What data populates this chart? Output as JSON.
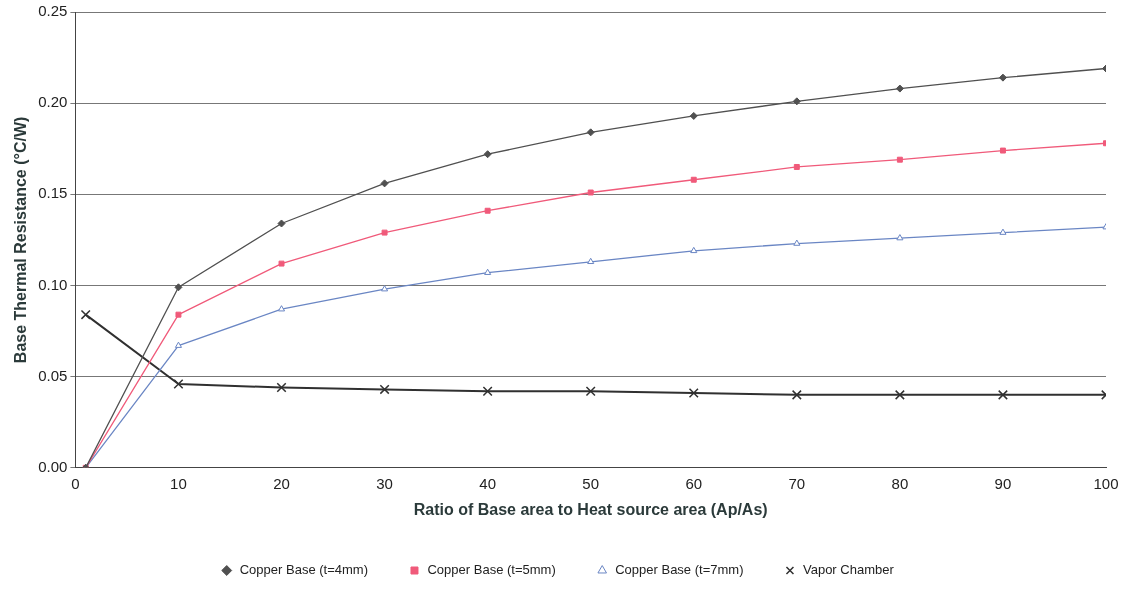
{
  "chart_data": {
    "type": "line",
    "xlabel": "Ratio of Base area to Heat source area (Ap/As)",
    "ylabel": "Base Thermal Resistance (°C/W)",
    "x": [
      1,
      10,
      20,
      30,
      40,
      50,
      60,
      70,
      80,
      90,
      100
    ],
    "series": [
      {
        "name": "Copper Base (t=4mm)",
        "color": "#505050",
        "marker": "diamond",
        "values": [
          0,
          0.099,
          0.134,
          0.156,
          0.172,
          0.184,
          0.193,
          0.201,
          0.208,
          0.214,
          0.219
        ]
      },
      {
        "name": "Copper Base (t=5mm)",
        "color": "#f05a7a",
        "marker": "square",
        "values": [
          0,
          0.084,
          0.112,
          0.129,
          0.141,
          0.151,
          0.158,
          0.165,
          0.169,
          0.174,
          0.178
        ]
      },
      {
        "name": "Copper Base (t=7mm)",
        "color": "#6a86c4",
        "marker": "triangle",
        "values": [
          0,
          0.067,
          0.087,
          0.098,
          0.107,
          0.113,
          0.119,
          0.123,
          0.126,
          0.129,
          0.132
        ]
      },
      {
        "name": "Vapor Chamber",
        "color": "#303030",
        "marker": "cross",
        "values": [
          0.084,
          0.046,
          0.044,
          0.043,
          0.042,
          0.042,
          0.041,
          0.04,
          0.04,
          0.04,
          0.04
        ]
      }
    ],
    "xlim": [
      0,
      100
    ],
    "xticks": [
      0,
      10,
      20,
      30,
      40,
      50,
      60,
      70,
      80,
      90,
      100
    ],
    "ylim": [
      0,
      0.25
    ],
    "yticks": [
      {
        "value": 0,
        "label": "0.00"
      },
      {
        "value": 0.05,
        "label": "0.05"
      },
      {
        "value": 0.1,
        "label": "0.10"
      },
      {
        "value": 0.15,
        "label": "0.15"
      },
      {
        "value": 0.2,
        "label": "0.20"
      },
      {
        "value": 0.25,
        "label": "0.25"
      }
    ],
    "grid": "y",
    "legend": "bottom",
    "line_style": "solid"
  }
}
